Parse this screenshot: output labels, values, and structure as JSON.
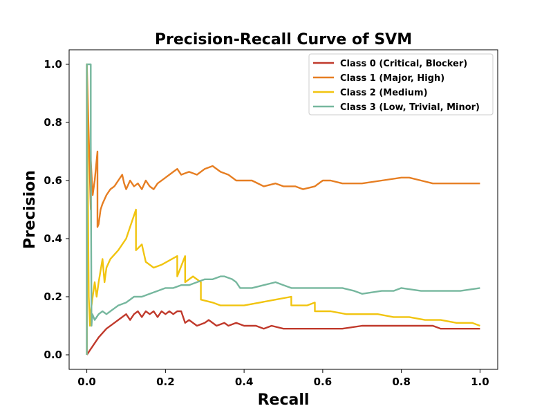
{
  "chart_data": {
    "type": "line",
    "title": "Precision-Recall Curve of SVM",
    "xlabel": "Recall",
    "ylabel": "Precision",
    "xlim": [
      -0.045,
      1.045
    ],
    "ylim": [
      -0.05,
      1.05
    ],
    "xticks": [
      0.0,
      0.2,
      0.4,
      0.6,
      0.8,
      1.0
    ],
    "yticks": [
      0.0,
      0.2,
      0.4,
      0.6,
      0.8,
      1.0
    ],
    "xtick_labels": [
      "0.0",
      "0.2",
      "0.4",
      "0.6",
      "0.8",
      "1.0"
    ],
    "ytick_labels": [
      "0.0",
      "0.2",
      "0.4",
      "0.6",
      "0.8",
      "1.0"
    ],
    "grid": false,
    "legend_position": "top-right",
    "series": [
      {
        "name": "Class 0 (Critical, Blocker)",
        "color": "#c0392b",
        "x": [
          0.0,
          0.01,
          0.02,
          0.03,
          0.05,
          0.07,
          0.09,
          0.1,
          0.11,
          0.12,
          0.13,
          0.14,
          0.15,
          0.16,
          0.17,
          0.18,
          0.19,
          0.2,
          0.21,
          0.22,
          0.23,
          0.24,
          0.25,
          0.26,
          0.28,
          0.3,
          0.31,
          0.33,
          0.35,
          0.36,
          0.38,
          0.4,
          0.43,
          0.45,
          0.47,
          0.5,
          0.53,
          0.55,
          0.58,
          0.6,
          0.65,
          0.7,
          0.75,
          0.8,
          0.83,
          0.85,
          0.87,
          0.88,
          0.9,
          0.95,
          1.0
        ],
        "y": [
          0.0,
          0.02,
          0.04,
          0.06,
          0.09,
          0.11,
          0.13,
          0.14,
          0.12,
          0.14,
          0.15,
          0.13,
          0.15,
          0.14,
          0.15,
          0.13,
          0.15,
          0.14,
          0.15,
          0.14,
          0.15,
          0.15,
          0.11,
          0.12,
          0.1,
          0.11,
          0.12,
          0.1,
          0.11,
          0.1,
          0.11,
          0.1,
          0.1,
          0.09,
          0.1,
          0.09,
          0.09,
          0.09,
          0.09,
          0.09,
          0.09,
          0.1,
          0.1,
          0.1,
          0.1,
          0.1,
          0.1,
          0.1,
          0.09,
          0.09,
          0.09
        ]
      },
      {
        "name": "Class 1 (Major, High)",
        "color": "#e67e22",
        "x": [
          0.0,
          0.0,
          0.01,
          0.01,
          0.015,
          0.02,
          0.027,
          0.027,
          0.03,
          0.035,
          0.04,
          0.05,
          0.06,
          0.07,
          0.08,
          0.09,
          0.095,
          0.1,
          0.11,
          0.12,
          0.13,
          0.14,
          0.15,
          0.16,
          0.17,
          0.18,
          0.2,
          0.22,
          0.23,
          0.24,
          0.26,
          0.28,
          0.3,
          0.32,
          0.34,
          0.36,
          0.38,
          0.4,
          0.42,
          0.45,
          0.48,
          0.5,
          0.53,
          0.55,
          0.58,
          0.6,
          0.62,
          0.65,
          0.7,
          0.75,
          0.8,
          0.82,
          0.85,
          0.88,
          0.9,
          0.95,
          1.0
        ],
        "y": [
          0.0,
          1.0,
          0.5,
          0.67,
          0.55,
          0.6,
          0.7,
          0.44,
          0.45,
          0.5,
          0.52,
          0.55,
          0.57,
          0.58,
          0.6,
          0.62,
          0.59,
          0.57,
          0.6,
          0.58,
          0.59,
          0.57,
          0.6,
          0.58,
          0.57,
          0.59,
          0.61,
          0.63,
          0.64,
          0.62,
          0.63,
          0.62,
          0.64,
          0.65,
          0.63,
          0.62,
          0.6,
          0.6,
          0.6,
          0.58,
          0.59,
          0.58,
          0.58,
          0.57,
          0.58,
          0.6,
          0.6,
          0.59,
          0.59,
          0.6,
          0.61,
          0.61,
          0.6,
          0.59,
          0.59,
          0.59,
          0.59
        ]
      },
      {
        "name": "Class 2 (Medium)",
        "color": "#f1c40f",
        "x": [
          0.0,
          0.0,
          0.005,
          0.008,
          0.01,
          0.015,
          0.02,
          0.025,
          0.03,
          0.04,
          0.045,
          0.05,
          0.06,
          0.08,
          0.1,
          0.125,
          0.125,
          0.14,
          0.15,
          0.17,
          0.19,
          0.23,
          0.23,
          0.25,
          0.25,
          0.27,
          0.29,
          0.29,
          0.32,
          0.34,
          0.36,
          0.4,
          0.44,
          0.48,
          0.52,
          0.52,
          0.56,
          0.58,
          0.58,
          0.62,
          0.66,
          0.7,
          0.74,
          0.78,
          0.82,
          0.86,
          0.9,
          0.94,
          0.98,
          1.0
        ],
        "y": [
          0.0,
          1.0,
          0.2,
          0.1,
          0.15,
          0.2,
          0.25,
          0.2,
          0.25,
          0.33,
          0.25,
          0.3,
          0.33,
          0.36,
          0.4,
          0.5,
          0.36,
          0.38,
          0.32,
          0.3,
          0.31,
          0.34,
          0.27,
          0.34,
          0.25,
          0.27,
          0.25,
          0.19,
          0.18,
          0.17,
          0.17,
          0.17,
          0.18,
          0.19,
          0.2,
          0.17,
          0.17,
          0.18,
          0.15,
          0.15,
          0.14,
          0.14,
          0.14,
          0.13,
          0.13,
          0.12,
          0.12,
          0.11,
          0.11,
          0.1
        ]
      },
      {
        "name": "Class 3 (Low, Trivial, Minor)",
        "color": "#76b79e",
        "x": [
          0.0,
          0.0,
          0.01,
          0.01,
          0.012,
          0.014,
          0.02,
          0.03,
          0.04,
          0.05,
          0.06,
          0.07,
          0.08,
          0.1,
          0.12,
          0.14,
          0.16,
          0.18,
          0.2,
          0.22,
          0.24,
          0.26,
          0.28,
          0.3,
          0.32,
          0.34,
          0.35,
          0.37,
          0.38,
          0.39,
          0.4,
          0.42,
          0.45,
          0.48,
          0.5,
          0.52,
          0.55,
          0.58,
          0.6,
          0.62,
          0.65,
          0.68,
          0.7,
          0.75,
          0.78,
          0.8,
          0.85,
          0.9,
          0.95,
          1.0
        ],
        "y": [
          0.0,
          1.0,
          1.0,
          0.75,
          0.1,
          0.14,
          0.12,
          0.14,
          0.15,
          0.14,
          0.15,
          0.16,
          0.17,
          0.18,
          0.2,
          0.2,
          0.21,
          0.22,
          0.23,
          0.23,
          0.24,
          0.24,
          0.25,
          0.26,
          0.26,
          0.27,
          0.27,
          0.26,
          0.25,
          0.23,
          0.23,
          0.23,
          0.24,
          0.25,
          0.24,
          0.23,
          0.23,
          0.23,
          0.23,
          0.23,
          0.23,
          0.22,
          0.21,
          0.22,
          0.22,
          0.23,
          0.22,
          0.22,
          0.22,
          0.23
        ]
      }
    ]
  }
}
